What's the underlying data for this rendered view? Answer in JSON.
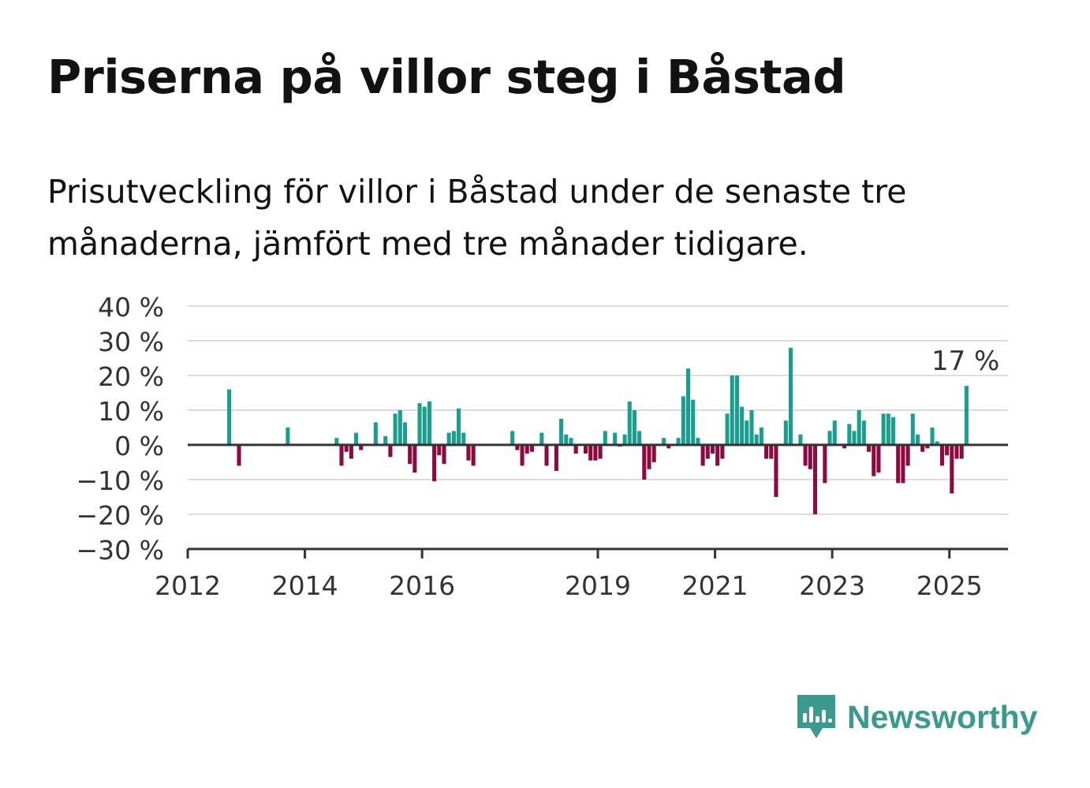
{
  "title": "Priserna på villor steg i Båstad",
  "subtitle": "Prisutveckling för villor i Båstad under de senaste tre månaderna, jämfört med tre månader tidigare.",
  "brand": {
    "name": "Newsworthy",
    "icon": "newsworthy-logo-icon"
  },
  "colors": {
    "positive": "#1a9e8f",
    "negative": "#8c0a3f",
    "grid": "#dcdcdc",
    "axis": "#333333"
  },
  "chart_data": {
    "type": "bar",
    "x_ticks": [
      "2012",
      "2014",
      "2016",
      "2019",
      "2021",
      "2023",
      "2025"
    ],
    "y_ticks": [
      "40 %",
      "30 %",
      "20 %",
      "10 %",
      "0 %",
      "−10 %",
      "−20 %",
      "−30 %"
    ],
    "ylim": [
      -30,
      40
    ],
    "xlim": [
      "2012-01",
      "2025-12"
    ],
    "grid": true,
    "annotation": {
      "text": "17 %",
      "x": "2025-04",
      "y": 17
    },
    "series": [
      {
        "values": [
          [
            "2012-09",
            16
          ],
          [
            "2012-11",
            -6
          ],
          [
            "2013-09",
            5
          ],
          [
            "2014-07",
            2
          ],
          [
            "2014-08",
            -6
          ],
          [
            "2014-09",
            -2
          ],
          [
            "2014-10",
            -4
          ],
          [
            "2014-11",
            3.5
          ],
          [
            "2014-12",
            -1.5
          ],
          [
            "2015-03",
            6.5
          ],
          [
            "2015-05",
            2.5
          ],
          [
            "2015-06",
            -3.5
          ],
          [
            "2015-07",
            9
          ],
          [
            "2015-08",
            10
          ],
          [
            "2015-09",
            6.5
          ],
          [
            "2015-10",
            -5.5
          ],
          [
            "2015-11",
            -8
          ],
          [
            "2015-12",
            12
          ],
          [
            "2016-01",
            11
          ],
          [
            "2016-02",
            12.5
          ],
          [
            "2016-03",
            -10.5
          ],
          [
            "2016-04",
            -3
          ],
          [
            "2016-05",
            -5.5
          ],
          [
            "2016-06",
            3.5
          ],
          [
            "2016-07",
            4
          ],
          [
            "2016-08",
            10.5
          ],
          [
            "2016-09",
            3.5
          ],
          [
            "2016-10",
            -4.5
          ],
          [
            "2016-11",
            -6
          ],
          [
            "2017-07",
            4
          ],
          [
            "2017-08",
            -1.5
          ],
          [
            "2017-09",
            -6
          ],
          [
            "2017-10",
            -2.5
          ],
          [
            "2017-11",
            -2
          ],
          [
            "2018-01",
            3.5
          ],
          [
            "2018-02",
            -6
          ],
          [
            "2018-04",
            -7.5
          ],
          [
            "2018-05",
            7.5
          ],
          [
            "2018-06",
            3
          ],
          [
            "2018-07",
            2
          ],
          [
            "2018-08",
            -2.5
          ],
          [
            "2018-10",
            -2.5
          ],
          [
            "2018-11",
            -4.5
          ],
          [
            "2018-12",
            -4.5
          ],
          [
            "2019-01",
            -4
          ],
          [
            "2019-02",
            4
          ],
          [
            "2019-04",
            3.5
          ],
          [
            "2019-05",
            -0.5
          ],
          [
            "2019-06",
            3
          ],
          [
            "2019-07",
            12.5
          ],
          [
            "2019-08",
            10
          ],
          [
            "2019-09",
            4
          ],
          [
            "2019-10",
            -10
          ],
          [
            "2019-11",
            -7
          ],
          [
            "2019-12",
            -5
          ],
          [
            "2020-02",
            2
          ],
          [
            "2020-03",
            -1
          ],
          [
            "2020-05",
            2
          ],
          [
            "2020-06",
            14
          ],
          [
            "2020-07",
            22
          ],
          [
            "2020-08",
            13
          ],
          [
            "2020-09",
            2
          ],
          [
            "2020-10",
            -6
          ],
          [
            "2020-11",
            -4
          ],
          [
            "2020-12",
            -2.5
          ],
          [
            "2021-01",
            -6
          ],
          [
            "2021-02",
            -4
          ],
          [
            "2021-03",
            9
          ],
          [
            "2021-04",
            20
          ],
          [
            "2021-05",
            20
          ],
          [
            "2021-06",
            11
          ],
          [
            "2021-07",
            7
          ],
          [
            "2021-08",
            10
          ],
          [
            "2021-09",
            3
          ],
          [
            "2021-10",
            5
          ],
          [
            "2021-11",
            -4
          ],
          [
            "2021-12",
            -4
          ],
          [
            "2022-01",
            -15
          ],
          [
            "2022-03",
            7
          ],
          [
            "2022-04",
            28
          ],
          [
            "2022-06",
            3
          ],
          [
            "2022-07",
            -6
          ],
          [
            "2022-08",
            -7
          ],
          [
            "2022-09",
            -20
          ],
          [
            "2022-11",
            -11
          ],
          [
            "2022-12",
            4
          ],
          [
            "2023-01",
            7
          ],
          [
            "2023-03",
            -1
          ],
          [
            "2023-04",
            6
          ],
          [
            "2023-05",
            4
          ],
          [
            "2023-06",
            10
          ],
          [
            "2023-07",
            7
          ],
          [
            "2023-08",
            -2
          ],
          [
            "2023-09",
            -9
          ],
          [
            "2023-10",
            -8
          ],
          [
            "2023-11",
            9
          ],
          [
            "2023-12",
            9
          ],
          [
            "2024-01",
            8
          ],
          [
            "2024-02",
            -11
          ],
          [
            "2024-03",
            -11
          ],
          [
            "2024-04",
            -6
          ],
          [
            "2024-05",
            9
          ],
          [
            "2024-06",
            3
          ],
          [
            "2024-07",
            -2
          ],
          [
            "2024-08",
            -1
          ],
          [
            "2024-09",
            5
          ],
          [
            "2024-10",
            1
          ],
          [
            "2024-11",
            -6
          ],
          [
            "2024-12",
            -3
          ],
          [
            "2025-01",
            -14
          ],
          [
            "2025-02",
            -4
          ],
          [
            "2025-03",
            -4
          ],
          [
            "2025-04",
            17
          ]
        ]
      }
    ]
  }
}
